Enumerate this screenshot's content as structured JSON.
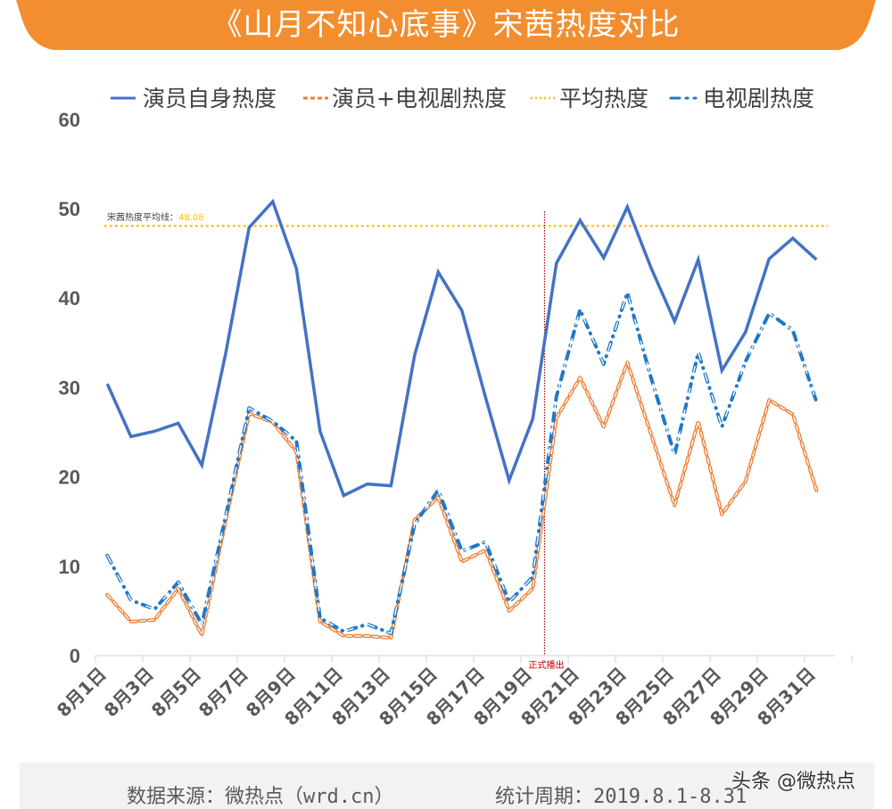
{
  "title": "《山月不知心底事》宋茜热度对比",
  "colors": {
    "banner": "#f28e2f",
    "self": "#4472c4",
    "combined": "#ed7d31",
    "average": "#ffc000",
    "drama": "#1f78c8",
    "marker": "#a00000",
    "axis_text": "#595959",
    "grid": "#d9d9d9"
  },
  "chart_data": {
    "type": "line",
    "title": "《山月不知心底事》宋茜热度对比",
    "xlabel": "",
    "ylabel": "",
    "ylim": [
      0,
      60
    ],
    "yticks": [
      0,
      10,
      20,
      30,
      40,
      50,
      60
    ],
    "grid": false,
    "legend_position": "top",
    "x": [
      "8月1日",
      "8月2日",
      "8月3日",
      "8月4日",
      "8月5日",
      "8月6日",
      "8月7日",
      "8月8日",
      "8月9日",
      "8月10日",
      "8月11日",
      "8月12日",
      "8月13日",
      "8月14日",
      "8月15日",
      "8月16日",
      "8月17日",
      "8月18日",
      "8月19日",
      "8月20日",
      "8月21日",
      "8月22日",
      "8月23日",
      "8月24日",
      "8月25日",
      "8月26日",
      "8月27日",
      "8月28日",
      "8月29日",
      "8月30日",
      "8月31日"
    ],
    "xtick_labels": [
      "8月1日",
      "8月3日",
      "8月5日",
      "8月7日",
      "8月9日",
      "8月11日",
      "8月13日",
      "8月15日",
      "8月17日",
      "8月19日",
      "8月21日",
      "8月23日",
      "8月25日",
      "8月27日",
      "8月29日",
      "8月31日"
    ],
    "series": [
      {
        "name": "演员自身热度",
        "style": "solid",
        "values": [
          30.4,
          24.5,
          25.1,
          26.0,
          21.3,
          33.7,
          47.9,
          50.8,
          43.3,
          25.1,
          17.9,
          19.2,
          19.0,
          33.6,
          42.9,
          38.6,
          28.9,
          19.6,
          26.5,
          43.9,
          48.7,
          44.5,
          50.2,
          43.4,
          37.4,
          44.3,
          31.9,
          36.2,
          44.4,
          46.7,
          44.3
        ]
      },
      {
        "name": "演员+电视剧热度",
        "style": "dashed",
        "values": [
          6.8,
          3.8,
          4.0,
          7.5,
          2.3,
          15.0,
          27.1,
          26.1,
          22.8,
          3.8,
          2.2,
          2.2,
          2.0,
          15.2,
          17.7,
          10.5,
          11.8,
          5.0,
          7.5,
          26.6,
          31.1,
          25.6,
          32.8,
          24.8,
          16.8,
          26.2,
          15.8,
          19.5,
          28.6,
          27.0,
          18.5
        ]
      },
      {
        "name": "平均热度",
        "style": "dotted",
        "constant": 48.08
      },
      {
        "name": "电视剧热度",
        "style": "dash-dot",
        "values": [
          11.2,
          6.2,
          5.2,
          8.2,
          3.5,
          15.5,
          27.7,
          26.2,
          24.0,
          4.2,
          2.7,
          3.5,
          2.5,
          14.7,
          18.5,
          11.7,
          12.7,
          6.0,
          8.8,
          29.0,
          38.7,
          32.6,
          40.6,
          31.1,
          22.5,
          33.9,
          25.6,
          32.9,
          38.3,
          36.4,
          28.4
        ]
      }
    ],
    "annotations": [
      {
        "text": "宋茜热度平均线：",
        "value_text": "48.08",
        "y": 48.08
      },
      {
        "text": "正式播出",
        "x_between": [
          "8月19日",
          "8月20日"
        ]
      }
    ]
  },
  "footer": {
    "source": "数据来源：微热点（wrd.cn）",
    "period": "统计周期：2019.8.1-8.31",
    "watermark": "头条 @微热点"
  }
}
